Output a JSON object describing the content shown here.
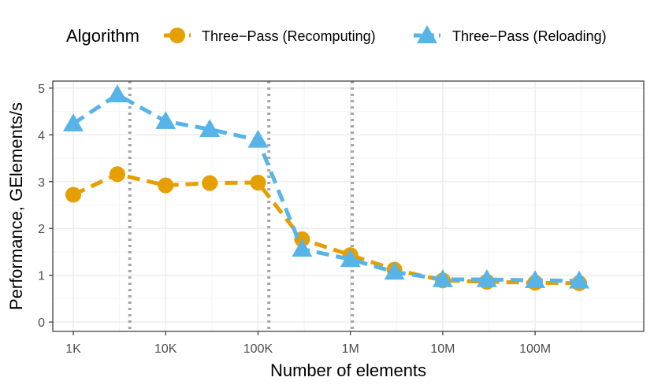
{
  "chart_data": {
    "type": "line",
    "xscale": "log10",
    "xlabel": "Number of elements",
    "ylabel": "Performance, GElements/s",
    "xlim": [
      600,
      1500000000
    ],
    "ylim": [
      -0.2,
      5.15
    ],
    "x_ticks": [
      {
        "value": 1000,
        "label": "1K"
      },
      {
        "value": 10000,
        "label": "10K"
      },
      {
        "value": 100000,
        "label": "100K"
      },
      {
        "value": 1000000,
        "label": "1M"
      },
      {
        "value": 10000000,
        "label": "10M"
      },
      {
        "value": 100000000,
        "label": "100M"
      }
    ],
    "y_ticks": [
      {
        "value": 0,
        "label": "0"
      },
      {
        "value": 1,
        "label": "1"
      },
      {
        "value": 2,
        "label": "2"
      },
      {
        "value": 3,
        "label": "3"
      },
      {
        "value": 4,
        "label": "4"
      },
      {
        "value": 5,
        "label": "5"
      }
    ],
    "vlines": [
      4096,
      131072,
      1048576
    ],
    "legend_title": "Algorithm",
    "legend_position": "top",
    "grid": true,
    "series": [
      {
        "name": "Three−Pass (Recomputing)",
        "color": "#E69F00",
        "marker": "circle",
        "x": [
          1000,
          3000,
          10000,
          30000,
          100000,
          300000,
          1000000,
          3000000,
          10000000,
          30000000,
          100000000,
          300000000
        ],
        "values": [
          2.72,
          3.16,
          2.92,
          2.97,
          2.98,
          1.77,
          1.43,
          1.12,
          0.89,
          0.86,
          0.84,
          0.83
        ]
      },
      {
        "name": "Three−Pass (Reloading)",
        "color": "#56B4E9",
        "marker": "triangle",
        "x": [
          1000,
          3000,
          10000,
          30000,
          100000,
          300000,
          1000000,
          3000000,
          10000000,
          30000000,
          100000000,
          300000000
        ],
        "values": [
          4.24,
          4.86,
          4.29,
          4.12,
          3.89,
          1.56,
          1.34,
          1.07,
          0.91,
          0.91,
          0.89,
          0.88
        ]
      }
    ]
  }
}
